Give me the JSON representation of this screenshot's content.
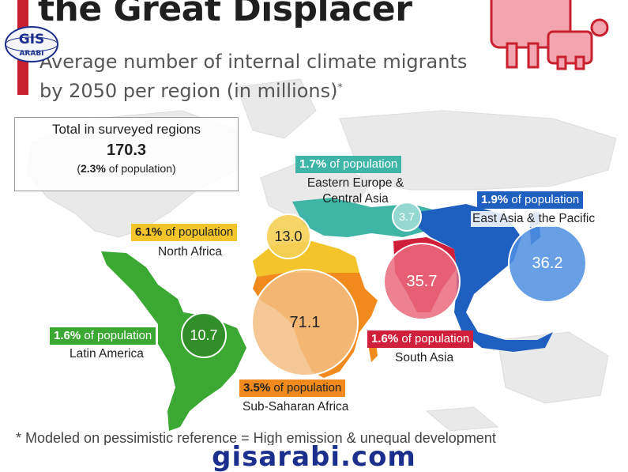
{
  "header": {
    "title": "the Great Displacer",
    "subtitle_line1": "Average number of internal climate migrants",
    "subtitle_line2": "by 2050 per region (in millions)",
    "subtitle_mark": "*"
  },
  "total": {
    "label": "Total in surveyed regions",
    "value": "170.3",
    "pct_open": "(",
    "pct": "2.3%",
    "pct_rest": " of population)"
  },
  "regions": [
    {
      "id": "eastern-europe-central-asia",
      "name_line1": "Eastern Europe &",
      "name_line2": "Central Asia",
      "value": "3.7",
      "pct": "1.7%",
      "pct_suffix": " of population",
      "color": "#3fb5a8",
      "bubble_color": "#9fdcd6"
    },
    {
      "id": "east-asia-pacific",
      "name_line1": "East Asia & the Pacific",
      "name_line2": "",
      "value": "36.2",
      "pct": "1.9%",
      "pct_suffix": " of population",
      "color": "#1f5fbf",
      "bubble_color": "#4f8fe0"
    },
    {
      "id": "north-africa",
      "name_line1": "North Africa",
      "name_line2": "",
      "value": "13.0",
      "pct": "6.1%",
      "pct_suffix": " of population",
      "color": "#f3c52b",
      "bubble_color": "#f5cf55"
    },
    {
      "id": "south-asia",
      "name_line1": "South Asia",
      "name_line2": "",
      "value": "35.7",
      "pct": "1.6%",
      "pct_suffix": " of population",
      "color": "#cf1f3a",
      "bubble_color": "#ea6b7f"
    },
    {
      "id": "latin-america",
      "name_line1": "Latin America",
      "name_line2": "",
      "value": "10.7",
      "pct": "1.6%",
      "pct_suffix": " of population",
      "color": "#3aa832",
      "bubble_color": "#2f8d28"
    },
    {
      "id": "sub-saharan-africa",
      "name_line1": "Sub-Saharan Africa",
      "name_line2": "",
      "value": "71.1",
      "pct": "3.5%",
      "pct_suffix": " of population",
      "color": "#f08a1c",
      "bubble_color": "#f3b46d"
    }
  ],
  "footnote": "* Modeled on pessimistic reference = High emission & unequal development",
  "watermark": {
    "site": "gisarabi.com",
    "logo_text_top": "GIS",
    "logo_text_bottom": "ARABI"
  },
  "colors": {
    "accent_red": "#c8202e",
    "map_base": "#e6e6e6",
    "site_blue": "#1c2f8c"
  }
}
